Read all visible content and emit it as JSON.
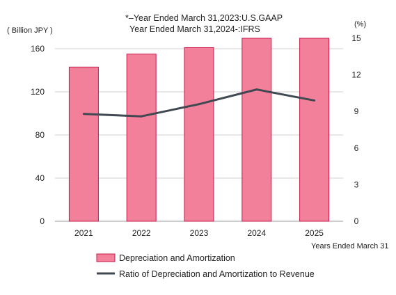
{
  "chart_data": {
    "type": "bar+line",
    "notes": [
      "*–Year Ended March 31,2023:U.S.GAAP",
      "Year Ended March 31,2024-:IFRS"
    ],
    "left_axis_label": "( Billion JPY )",
    "right_axis_label": "(%)",
    "xlabel": "Years Ended March 31",
    "categories": [
      "2021",
      "2022",
      "2023",
      "2024",
      "2025"
    ],
    "left_ticks": [
      "0",
      "40",
      "80",
      "120",
      "160"
    ],
    "right_ticks": [
      "0",
      "3",
      "6",
      "9",
      "12",
      "15"
    ],
    "left_ylim": [
      0,
      160
    ],
    "right_ylim": [
      0,
      15
    ],
    "grid": true,
    "legend_position": "bottom",
    "series": [
      {
        "name": "Depreciation and Amortization",
        "type": "bar",
        "axis": "left",
        "values": [
          143,
          155,
          161,
          170,
          170
        ],
        "color": "#f2809a",
        "stroke": "#c8184a"
      },
      {
        "name": "Ratio of Depreciation and Amortization to Revenue",
        "type": "line",
        "axis": "right",
        "values": [
          8.8,
          8.6,
          9.6,
          10.8,
          9.9
        ],
        "color": "#404952"
      }
    ]
  }
}
